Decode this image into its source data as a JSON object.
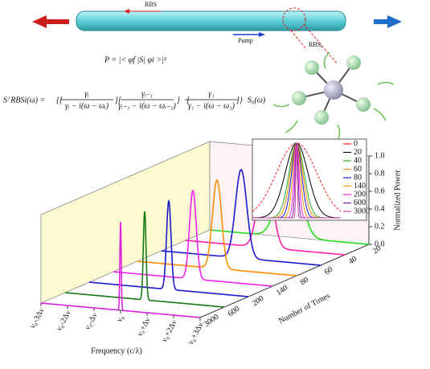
{
  "chart_data": [
    {
      "type": "waterfall",
      "x_label": "Frequency (c/λ)",
      "y_label": "Normalized Power",
      "z_label": "Number of Times",
      "xlim": [
        -3,
        3
      ],
      "xticks": [
        {
          "value": -3,
          "label": "ν₀-3Δν"
        },
        {
          "value": -2,
          "label": "ν₀-2Δν"
        },
        {
          "value": -1,
          "label": "ν₀-Δν"
        },
        {
          "value": 0,
          "label": "ν₀"
        },
        {
          "value": 1,
          "label": "ν₀+Δν"
        },
        {
          "value": 2,
          "label": "ν₀+2Δν"
        },
        {
          "value": 3,
          "label": "ν₀+3Δν"
        }
      ],
      "ylim": [
        0,
        1
      ],
      "yticks": [
        {
          "value": 0,
          "label": "0.0"
        },
        {
          "value": 0.2,
          "label": "0.2"
        },
        {
          "value": 0.4,
          "label": "0.4"
        },
        {
          "value": 0.6,
          "label": "0.6"
        },
        {
          "value": 0.8,
          "label": "0.8"
        },
        {
          "value": 1,
          "label": "1.0"
        }
      ],
      "series": [
        {
          "name": "20",
          "color": "#22dd22",
          "fwhm": 0.9
        },
        {
          "name": "40",
          "color": "#ff1fa8",
          "fwhm": 0.6
        },
        {
          "name": "60",
          "color": "#1a1acc",
          "fwhm": 0.5
        },
        {
          "name": "80",
          "color": "#ff8c00",
          "fwhm": 0.4
        },
        {
          "name": "140",
          "color": "#ee22ee",
          "fwhm": 0.3
        },
        {
          "name": "200",
          "color": "#1a1acc",
          "fwhm": 0.2
        },
        {
          "name": "600",
          "color": "#157a15",
          "fwhm": 0.12
        },
        {
          "name": "3000",
          "color": "#dd22dd",
          "fwhm": 0.06
        }
      ]
    },
    {
      "type": "line-inset",
      "xlim": [
        -1.5,
        1.5
      ],
      "ylim": [
        0,
        1
      ],
      "series": [
        {
          "name": "0",
          "color": "#ff2020",
          "fwhm": 1.6
        },
        {
          "name": "20",
          "color": "#000000",
          "fwhm": 0.9
        },
        {
          "name": "40",
          "color": "#22aa22",
          "fwhm": 0.6
        },
        {
          "name": "60",
          "color": "#ff8c00",
          "fwhm": 0.5
        },
        {
          "name": "80",
          "color": "#1a1acc",
          "fwhm": 0.4
        },
        {
          "name": "140",
          "color": "#ff9900",
          "fwhm": 0.3
        },
        {
          "name": "200",
          "color": "#ee22ee",
          "fwhm": 0.2
        },
        {
          "name": "600",
          "color": "#7a1aaa",
          "fwhm": 0.12
        },
        {
          "name": "3000",
          "color": "#cc44aa",
          "fwhm": 0.06
        }
      ]
    }
  ],
  "diagram": {
    "rbs": "RBS",
    "pump": "Pump",
    "rbs_i": {
      "main": "RBS",
      "sub": "i"
    },
    "equation1": "P = |< φf |S| φi >|²",
    "equation2": {
      "lhs": "Sⁱ RBSi(ω) =",
      "fractions": [
        {
          "num": "γᵢ",
          "den": "γᵢ − i(ω − ωᵢ)"
        },
        {
          "num": "γᵢ₋₁",
          "den": "γᵢ₋₁ − i(ω − ωᵢ₋₁)"
        },
        {
          "num": "γ₁",
          "den": "γ₁ − i(ω − ω₁)"
        }
      ],
      "rhs": "S₀(ω)"
    }
  }
}
